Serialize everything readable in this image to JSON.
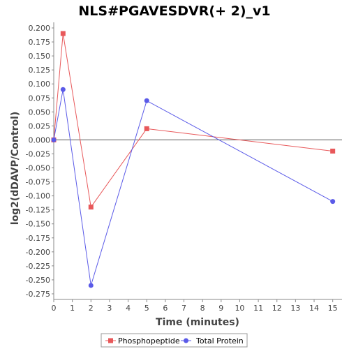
{
  "chart_data": {
    "type": "line",
    "title": "NLS#PGAVESDVR(+ 2)_v1",
    "xlabel": "Time (minutes)",
    "ylabel": "log2(dDAVP/Control)",
    "xlim": [
      0,
      15.5
    ],
    "ylim": [
      -0.285,
      0.21
    ],
    "x_ticks": [
      0,
      1,
      2,
      3,
      4,
      5,
      6,
      7,
      8,
      9,
      10,
      11,
      12,
      13,
      14,
      15
    ],
    "y_ticks": [
      0.2,
      0.175,
      0.15,
      0.125,
      0.1,
      0.075,
      0.05,
      0.025,
      0.0,
      -0.025,
      -0.05,
      -0.075,
      -0.1,
      -0.125,
      -0.15,
      -0.175,
      -0.2,
      -0.225,
      -0.25,
      -0.275
    ],
    "y_tick_labels": [
      "0.200",
      "0.175",
      "0.150",
      "0.125",
      "0.100",
      "0.075",
      "0.050",
      "0.025",
      "0.000",
      "-0.025",
      "-0.050",
      "-0.075",
      "-0.100",
      "-0.125",
      "-0.150",
      "-0.175",
      "-0.200",
      "-0.225",
      "-0.250",
      "-0.275"
    ],
    "grid": false,
    "zero_line": true,
    "legend_position": "bottom",
    "series": [
      {
        "name": "Phosphopeptide",
        "color": "#e8585a",
        "marker": "square",
        "points": [
          [
            0,
            0.0
          ],
          [
            0.5,
            0.19
          ],
          [
            2,
            -0.12
          ],
          [
            5,
            0.02
          ],
          [
            15,
            -0.02
          ]
        ]
      },
      {
        "name": "Total Protein",
        "color": "#5a5ae8",
        "marker": "circle",
        "points": [
          [
            0,
            0.0
          ],
          [
            0.5,
            0.09
          ],
          [
            2,
            -0.26
          ],
          [
            5,
            0.07
          ],
          [
            15,
            -0.11
          ]
        ]
      }
    ]
  }
}
